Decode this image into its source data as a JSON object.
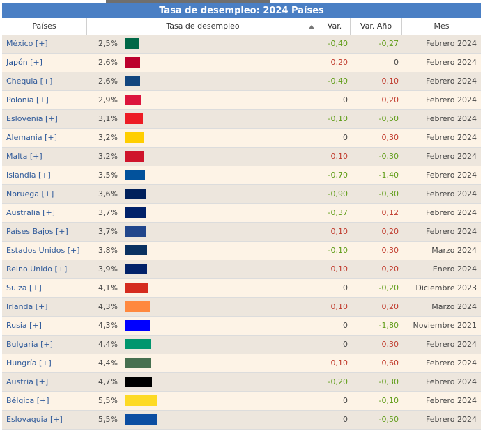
{
  "title": "Tasa de desempleo: 2024 Países",
  "columns": {
    "country": "Países",
    "rate": "Tasa de desempleo",
    "var": "Var.",
    "var_year": "Var. Año",
    "month": "Mes"
  },
  "rows": [
    {
      "country": "México [+]",
      "rate": "2,5%",
      "rate_value": 2.5,
      "bar_color": "#006847",
      "var": "-0,40",
      "var_year": "-0,27",
      "month": "Febrero 2024"
    },
    {
      "country": "Japón [+]",
      "rate": "2,6%",
      "rate_value": 2.6,
      "bar_color": "#bc002d",
      "var": "0,20",
      "var_year": "0",
      "month": "Febrero 2024"
    },
    {
      "country": "Chequia [+]",
      "rate": "2,6%",
      "rate_value": 2.6,
      "bar_color": "#11457e",
      "var": "-0,40",
      "var_year": "0,10",
      "month": "Febrero 2024"
    },
    {
      "country": "Polonia [+]",
      "rate": "2,9%",
      "rate_value": 2.9,
      "bar_color": "#dc143c",
      "var": "0",
      "var_year": "0,20",
      "month": "Febrero 2024"
    },
    {
      "country": "Eslovenia [+]",
      "rate": "3,1%",
      "rate_value": 3.1,
      "bar_color": "#ed1c24",
      "var": "-0,10",
      "var_year": "-0,50",
      "month": "Febrero 2024"
    },
    {
      "country": "Alemania [+]",
      "rate": "3,2%",
      "rate_value": 3.2,
      "bar_color": "#ffce00",
      "var": "0",
      "var_year": "0,30",
      "month": "Febrero 2024"
    },
    {
      "country": "Malta [+]",
      "rate": "3,2%",
      "rate_value": 3.2,
      "bar_color": "#cf142b",
      "var": "0,10",
      "var_year": "-0,30",
      "month": "Febrero 2024"
    },
    {
      "country": "Islandia [+]",
      "rate": "3,5%",
      "rate_value": 3.5,
      "bar_color": "#02529c",
      "var": "-0,70",
      "var_year": "-1,40",
      "month": "Febrero 2024"
    },
    {
      "country": "Noruega [+]",
      "rate": "3,6%",
      "rate_value": 3.6,
      "bar_color": "#00205b",
      "var": "-0,90",
      "var_year": "-0,30",
      "month": "Febrero 2024"
    },
    {
      "country": "Australia [+]",
      "rate": "3,7%",
      "rate_value": 3.7,
      "bar_color": "#012169",
      "var": "-0,37",
      "var_year": "0,12",
      "month": "Febrero 2024"
    },
    {
      "country": "Países Bajos [+]",
      "rate": "3,7%",
      "rate_value": 3.7,
      "bar_color": "#21468b",
      "var": "0,10",
      "var_year": "0,20",
      "month": "Febrero 2024"
    },
    {
      "country": "Estados Unidos [+]",
      "rate": "3,8%",
      "rate_value": 3.8,
      "bar_color": "#0a3161",
      "var": "-0,10",
      "var_year": "0,30",
      "month": "Marzo 2024"
    },
    {
      "country": "Reino Unido [+]",
      "rate": "3,9%",
      "rate_value": 3.9,
      "bar_color": "#012169",
      "var": "0,10",
      "var_year": "0,20",
      "month": "Enero 2024"
    },
    {
      "country": "Suiza [+]",
      "rate": "4,1%",
      "rate_value": 4.1,
      "bar_color": "#d52b1e",
      "var": "0",
      "var_year": "-0,20",
      "month": "Diciembre 2023"
    },
    {
      "country": "Irlanda [+]",
      "rate": "4,3%",
      "rate_value": 4.3,
      "bar_color": "#ff883e",
      "var": "0,10",
      "var_year": "0,20",
      "month": "Marzo 2024"
    },
    {
      "country": "Rusia [+]",
      "rate": "4,3%",
      "rate_value": 4.3,
      "bar_color": "#0000ff",
      "var": "0",
      "var_year": "-1,80",
      "month": "Noviembre 2021"
    },
    {
      "country": "Bulgaria [+]",
      "rate": "4,4%",
      "rate_value": 4.4,
      "bar_color": "#00966e",
      "var": "0",
      "var_year": "0,30",
      "month": "Febrero 2024"
    },
    {
      "country": "Hungría [+]",
      "rate": "4,4%",
      "rate_value": 4.4,
      "bar_color": "#477050",
      "var": "0,10",
      "var_year": "0,60",
      "month": "Febrero 2024"
    },
    {
      "country": "Austria [+]",
      "rate": "4,7%",
      "rate_value": 4.7,
      "bar_color": "#000000",
      "var": "-0,20",
      "var_year": "-0,30",
      "month": "Febrero 2024"
    },
    {
      "country": "Bélgica [+]",
      "rate": "5,5%",
      "rate_value": 5.5,
      "bar_color": "#fdda24",
      "var": "0",
      "var_year": "-0,10",
      "month": "Febrero 2024"
    },
    {
      "country": "Eslovaquia [+]",
      "rate": "5,5%",
      "rate_value": 5.5,
      "bar_color": "#0b4ea2",
      "var": "0",
      "var_year": "-0,50",
      "month": "Febrero 2024"
    }
  ]
}
